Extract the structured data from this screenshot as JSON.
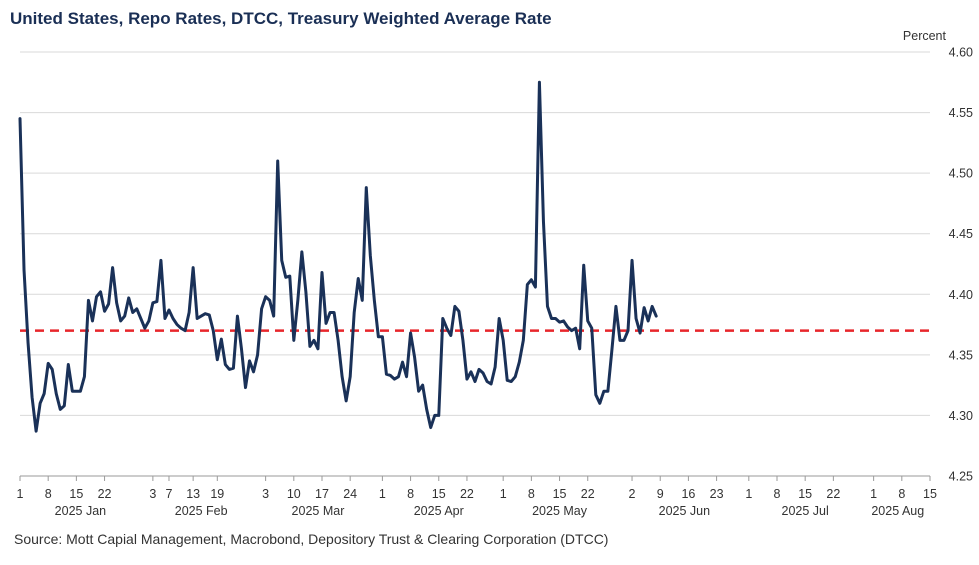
{
  "chart_data": {
    "type": "line",
    "title": "United States, Repo Rates, DTCC, Treasury Weighted Average Rate",
    "ylabel": "Percent",
    "ylim": [
      4.25,
      4.6
    ],
    "yticks": [
      "4.60",
      "4.55",
      "4.50",
      "4.45",
      "4.40",
      "4.35",
      "4.30",
      "4.25"
    ],
    "x_start": "2025-01-01",
    "x_end": "2025-08-15",
    "day_ticks": [
      {
        "day": 0,
        "label": "1"
      },
      {
        "day": 7,
        "label": "8"
      },
      {
        "day": 14,
        "label": "15"
      },
      {
        "day": 21,
        "label": "22"
      },
      {
        "day": 33,
        "label": "3"
      },
      {
        "day": 37,
        "label": "7"
      },
      {
        "day": 43,
        "label": "13"
      },
      {
        "day": 49,
        "label": "19"
      },
      {
        "day": 61,
        "label": "3"
      },
      {
        "day": 68,
        "label": "10"
      },
      {
        "day": 75,
        "label": "17"
      },
      {
        "day": 82,
        "label": "24"
      },
      {
        "day": 90,
        "label": "1"
      },
      {
        "day": 97,
        "label": "8"
      },
      {
        "day": 104,
        "label": "15"
      },
      {
        "day": 111,
        "label": "22"
      },
      {
        "day": 120,
        "label": "1"
      },
      {
        "day": 127,
        "label": "8"
      },
      {
        "day": 134,
        "label": "15"
      },
      {
        "day": 141,
        "label": "22"
      },
      {
        "day": 152,
        "label": "2"
      },
      {
        "day": 159,
        "label": "9"
      },
      {
        "day": 166,
        "label": "16"
      },
      {
        "day": 173,
        "label": "23"
      },
      {
        "day": 181,
        "label": "1"
      },
      {
        "day": 188,
        "label": "8"
      },
      {
        "day": 195,
        "label": "15"
      },
      {
        "day": 202,
        "label": "22"
      },
      {
        "day": 212,
        "label": "1"
      },
      {
        "day": 219,
        "label": "8"
      },
      {
        "day": 226,
        "label": "15"
      }
    ],
    "month_labels": [
      {
        "day": 15,
        "label": "2025 Jan"
      },
      {
        "day": 45,
        "label": "2025 Feb"
      },
      {
        "day": 74,
        "label": "2025 Mar"
      },
      {
        "day": 104,
        "label": "2025 Apr"
      },
      {
        "day": 134,
        "label": "2025 May"
      },
      {
        "day": 165,
        "label": "2025 Jun"
      },
      {
        "day": 195,
        "label": "2025 Jul"
      },
      {
        "day": 218,
        "label": "2025 Aug"
      }
    ],
    "reference_line": {
      "value": 4.37,
      "style": "dashed",
      "color": "#e8262b"
    },
    "series": [
      {
        "name": "Treasury Weighted Average Rate",
        "color": "#1a3158",
        "points": [
          [
            0,
            4.545
          ],
          [
            1,
            4.42
          ],
          [
            2,
            4.36
          ],
          [
            3,
            4.315
          ],
          [
            4,
            4.287
          ],
          [
            5,
            4.31
          ],
          [
            6,
            4.318
          ],
          [
            7,
            4.343
          ],
          [
            8,
            4.338
          ],
          [
            9,
            4.318
          ],
          [
            10,
            4.305
          ],
          [
            11,
            4.308
          ],
          [
            12,
            4.342
          ],
          [
            13,
            4.32
          ],
          [
            14,
            4.32
          ],
          [
            15,
            4.32
          ],
          [
            16,
            4.332
          ],
          [
            17,
            4.395
          ],
          [
            18,
            4.378
          ],
          [
            19,
            4.398
          ],
          [
            20,
            4.402
          ],
          [
            21,
            4.386
          ],
          [
            22,
            4.392
          ],
          [
            23,
            4.422
          ],
          [
            24,
            4.393
          ],
          [
            25,
            4.378
          ],
          [
            26,
            4.382
          ],
          [
            27,
            4.397
          ],
          [
            28,
            4.385
          ],
          [
            29,
            4.388
          ],
          [
            30,
            4.38
          ],
          [
            31,
            4.372
          ],
          [
            32,
            4.378
          ],
          [
            33,
            4.393
          ],
          [
            34,
            4.394
          ],
          [
            35,
            4.428
          ],
          [
            36,
            4.38
          ],
          [
            37,
            4.387
          ],
          [
            38,
            4.38
          ],
          [
            39,
            4.375
          ],
          [
            40,
            4.372
          ],
          [
            41,
            4.37
          ],
          [
            42,
            4.385
          ],
          [
            43,
            4.422
          ],
          [
            44,
            4.38
          ],
          [
            45,
            4.382
          ],
          [
            46,
            4.384
          ],
          [
            47,
            4.383
          ],
          [
            48,
            4.37
          ],
          [
            49,
            4.346
          ],
          [
            50,
            4.363
          ],
          [
            51,
            4.342
          ],
          [
            52,
            4.338
          ],
          [
            53,
            4.339
          ],
          [
            54,
            4.382
          ],
          [
            55,
            4.355
          ],
          [
            56,
            4.323
          ],
          [
            57,
            4.345
          ],
          [
            58,
            4.336
          ],
          [
            59,
            4.35
          ],
          [
            60,
            4.388
          ],
          [
            61,
            4.398
          ],
          [
            62,
            4.395
          ],
          [
            63,
            4.382
          ],
          [
            64,
            4.51
          ],
          [
            65,
            4.428
          ],
          [
            66,
            4.414
          ],
          [
            67,
            4.415
          ],
          [
            68,
            4.362
          ],
          [
            69,
            4.395
          ],
          [
            70,
            4.435
          ],
          [
            71,
            4.402
          ],
          [
            72,
            4.357
          ],
          [
            73,
            4.362
          ],
          [
            74,
            4.355
          ],
          [
            75,
            4.418
          ],
          [
            76,
            4.376
          ],
          [
            77,
            4.385
          ],
          [
            78,
            4.385
          ],
          [
            79,
            4.362
          ],
          [
            80,
            4.332
          ],
          [
            81,
            4.312
          ],
          [
            82,
            4.332
          ],
          [
            83,
            4.385
          ],
          [
            84,
            4.413
          ],
          [
            85,
            4.395
          ],
          [
            86,
            4.488
          ],
          [
            87,
            4.432
          ],
          [
            88,
            4.395
          ],
          [
            89,
            4.365
          ],
          [
            90,
            4.365
          ],
          [
            91,
            4.334
          ],
          [
            92,
            4.333
          ],
          [
            93,
            4.33
          ],
          [
            94,
            4.332
          ],
          [
            95,
            4.344
          ],
          [
            96,
            4.332
          ],
          [
            97,
            4.368
          ],
          [
            98,
            4.348
          ],
          [
            99,
            4.32
          ],
          [
            100,
            4.325
          ],
          [
            101,
            4.305
          ],
          [
            102,
            4.29
          ],
          [
            103,
            4.3
          ],
          [
            104,
            4.3
          ],
          [
            105,
            4.38
          ],
          [
            106,
            4.372
          ],
          [
            107,
            4.366
          ],
          [
            108,
            4.39
          ],
          [
            109,
            4.386
          ],
          [
            110,
            4.362
          ],
          [
            111,
            4.33
          ],
          [
            112,
            4.336
          ],
          [
            113,
            4.328
          ],
          [
            114,
            4.338
          ],
          [
            115,
            4.335
          ],
          [
            116,
            4.328
          ],
          [
            117,
            4.326
          ],
          [
            118,
            4.34
          ],
          [
            119,
            4.38
          ],
          [
            120,
            4.362
          ],
          [
            121,
            4.329
          ],
          [
            122,
            4.328
          ],
          [
            123,
            4.332
          ],
          [
            124,
            4.344
          ],
          [
            125,
            4.362
          ],
          [
            126,
            4.408
          ],
          [
            127,
            4.412
          ],
          [
            128,
            4.406
          ],
          [
            129,
            4.575
          ],
          [
            130,
            4.46
          ],
          [
            131,
            4.39
          ],
          [
            132,
            4.38
          ],
          [
            133,
            4.38
          ],
          [
            134,
            4.377
          ],
          [
            135,
            4.378
          ],
          [
            136,
            4.373
          ],
          [
            137,
            4.37
          ],
          [
            138,
            4.372
          ],
          [
            139,
            4.355
          ],
          [
            140,
            4.424
          ],
          [
            141,
            4.378
          ],
          [
            142,
            4.372
          ],
          [
            143,
            4.317
          ],
          [
            144,
            4.31
          ],
          [
            145,
            4.32
          ],
          [
            146,
            4.32
          ],
          [
            147,
            4.354
          ],
          [
            148,
            4.39
          ],
          [
            149,
            4.362
          ],
          [
            150,
            4.362
          ],
          [
            151,
            4.37
          ],
          [
            152,
            4.428
          ],
          [
            153,
            4.38
          ],
          [
            154,
            4.368
          ],
          [
            155,
            4.389
          ],
          [
            156,
            4.378
          ],
          [
            157,
            4.39
          ],
          [
            158,
            4.382
          ]
        ]
      }
    ]
  },
  "footer": {
    "source": "Source: Mott Capial Management, Macrobond, Depository Trust & Clearing Corporation (DTCC)"
  }
}
